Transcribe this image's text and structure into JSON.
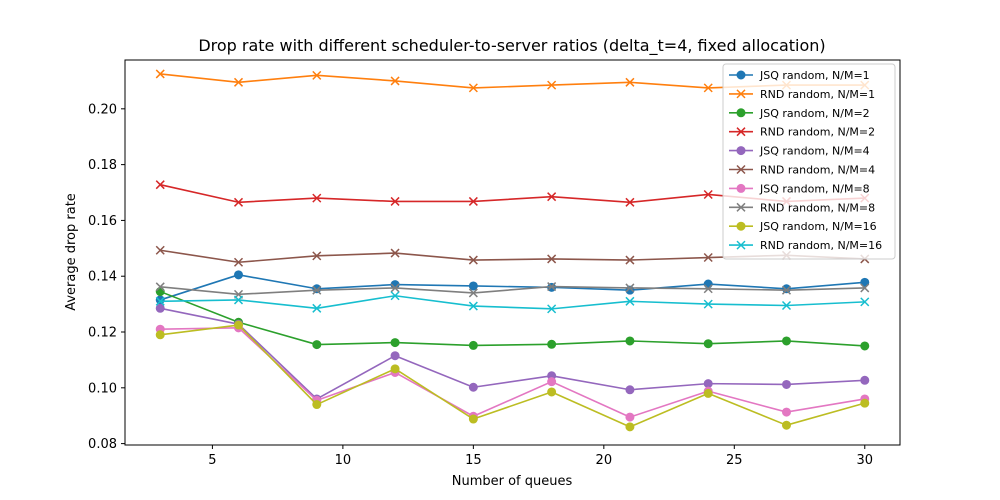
{
  "chart_data": {
    "type": "line",
    "title": "Drop rate with different scheduler-to-server ratios (delta_t=4, fixed allocation)",
    "xlabel": "Number of queues",
    "ylabel": "Average drop rate",
    "xlim": [
      1.65,
      31.35
    ],
    "ylim": [
      0.0795,
      0.2175
    ],
    "xticks": [
      5,
      10,
      15,
      20,
      25,
      30
    ],
    "xtick_labels": [
      "5",
      "10",
      "15",
      "20",
      "25",
      "30"
    ],
    "yticks": [
      0.08,
      0.1,
      0.12,
      0.14,
      0.16,
      0.18,
      0.2
    ],
    "ytick_labels": [
      "0.08",
      "0.10",
      "0.12",
      "0.14",
      "0.16",
      "0.18",
      "0.20"
    ],
    "grid": false,
    "legend_position": "top-right",
    "x": [
      3,
      6,
      9,
      12,
      15,
      18,
      21,
      24,
      27,
      30
    ],
    "series": [
      {
        "name": "JSQ random, N/M=1",
        "color": "#1f77b4",
        "marker": "circle",
        "values": [
          0.1315,
          0.1405,
          0.1355,
          0.137,
          0.1365,
          0.136,
          0.135,
          0.1372,
          0.1355,
          0.1378
        ]
      },
      {
        "name": "RND random, N/M=1",
        "color": "#ff7f0e",
        "marker": "x",
        "values": [
          0.2125,
          0.2095,
          0.212,
          0.21,
          0.2075,
          0.2085,
          0.2095,
          0.2075,
          0.2085,
          0.2085
        ]
      },
      {
        "name": "JSQ random, N/M=2",
        "color": "#2ca02c",
        "marker": "circle",
        "values": [
          0.1345,
          0.1235,
          0.1155,
          0.1162,
          0.1152,
          0.1156,
          0.1168,
          0.1158,
          0.1168,
          0.115
        ]
      },
      {
        "name": "RND random, N/M=2",
        "color": "#d62728",
        "marker": "x",
        "values": [
          0.1728,
          0.1665,
          0.168,
          0.1668,
          0.1668,
          0.1685,
          0.1665,
          0.1693,
          0.1668,
          0.168
        ]
      },
      {
        "name": "JSQ random, N/M=4",
        "color": "#9467bd",
        "marker": "circle",
        "values": [
          0.1285,
          0.1228,
          0.096,
          0.1115,
          0.1002,
          0.1043,
          0.0993,
          0.1015,
          0.1012,
          0.1027
        ]
      },
      {
        "name": "RND random, N/M=4",
        "color": "#8c564b",
        "marker": "x",
        "values": [
          0.1493,
          0.145,
          0.1473,
          0.1483,
          0.1458,
          0.1462,
          0.1458,
          0.1467,
          0.1475,
          0.1462
        ]
      },
      {
        "name": "JSQ random, N/M=8",
        "color": "#e377c2",
        "marker": "circle",
        "values": [
          0.121,
          0.1215,
          0.0955,
          0.1055,
          0.0898,
          0.1022,
          0.0895,
          0.0988,
          0.0913,
          0.096
        ]
      },
      {
        "name": "RND random, N/M=8",
        "color": "#7f7f7f",
        "marker": "x",
        "values": [
          0.1362,
          0.1335,
          0.135,
          0.1358,
          0.134,
          0.1363,
          0.1358,
          0.1355,
          0.135,
          0.1358
        ]
      },
      {
        "name": "JSQ random, N/M=16",
        "color": "#bcbd22",
        "marker": "circle",
        "values": [
          0.119,
          0.1225,
          0.094,
          0.1068,
          0.0888,
          0.0985,
          0.086,
          0.098,
          0.0866,
          0.0945
        ]
      },
      {
        "name": "RND random, N/M=16",
        "color": "#17becf",
        "marker": "x",
        "values": [
          0.131,
          0.1315,
          0.1285,
          0.133,
          0.1293,
          0.1283,
          0.131,
          0.13,
          0.1295,
          0.1308
        ]
      }
    ]
  }
}
